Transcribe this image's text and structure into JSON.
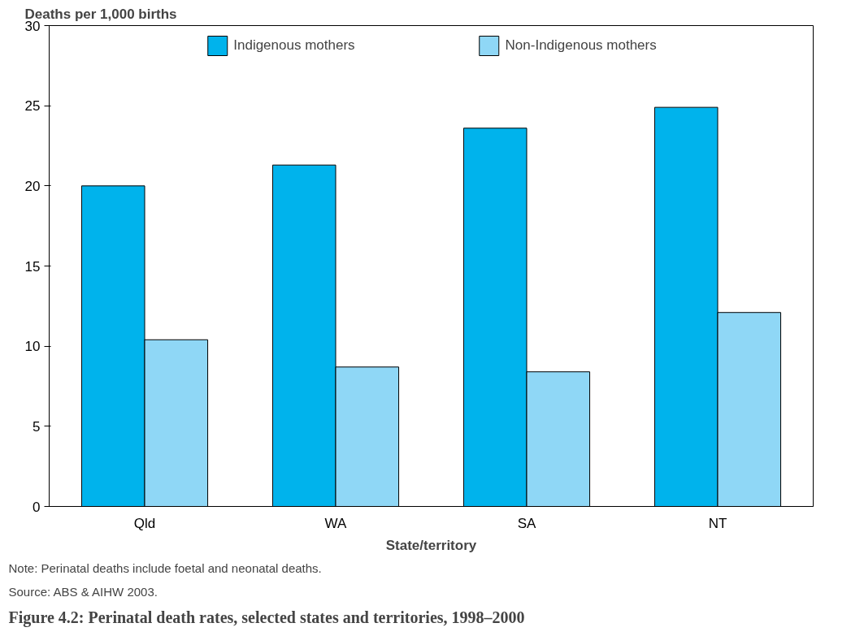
{
  "chart_data": {
    "type": "bar",
    "title": "Figure 4.2: Perinatal death rates, selected states and territories, 1998–2000",
    "xlabel": "State/territory",
    "ylabel": "Deaths per 1,000 births",
    "categories": [
      "Qld",
      "WA",
      "SA",
      "NT"
    ],
    "series": [
      {
        "name": "Indigenous mothers",
        "color": "#00b3ec",
        "values": [
          20.0,
          21.3,
          23.6,
          24.9
        ]
      },
      {
        "name": "Non-Indigenous mothers",
        "color": "#8fd7f6",
        "values": [
          10.4,
          8.7,
          8.4,
          12.1
        ]
      }
    ],
    "ylim": [
      0,
      30
    ],
    "yticks": [
      0,
      5,
      10,
      15,
      20,
      25,
      30
    ],
    "grid": false,
    "legend": "top",
    "annotations": [
      "Note: Perinatal deaths include foetal and neonatal deaths.",
      "Source: ABS & AIHW 2003."
    ]
  }
}
